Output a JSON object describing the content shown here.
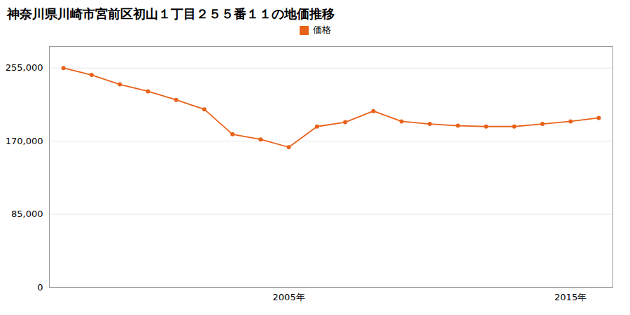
{
  "chart_data": {
    "type": "line",
    "title": "神奈川県川崎市宮前区初山１丁目２５５番１１の地価推移",
    "x": [
      1997,
      1998,
      1999,
      2000,
      2001,
      2002,
      2003,
      2004,
      2005,
      2006,
      2007,
      2008,
      2009,
      2010,
      2011,
      2012,
      2013,
      2014,
      2015,
      2016
    ],
    "series": [
      {
        "name": "価格",
        "color": "#e8621a",
        "marker": "circle",
        "values": [
          255000,
          247000,
          236000,
          228000,
          218000,
          207000,
          178000,
          172000,
          163000,
          187000,
          192000,
          205000,
          193000,
          190000,
          188000,
          187000,
          187000,
          190000,
          193000,
          197000
        ]
      }
    ],
    "xlim": [
      1996.5,
      2016.5
    ],
    "xticks": [
      {
        "value": 2005,
        "label": "2005年"
      },
      {
        "value": 2015,
        "label": "2015年"
      }
    ],
    "ylim": [
      0,
      280000
    ],
    "yticks": [
      0,
      {
        "value": 85000,
        "label": "85,000"
      },
      {
        "value": 170000,
        "label": "170,000"
      },
      {
        "value": 255000,
        "label": "255,000"
      }
    ],
    "grid": "y",
    "legend": "top"
  }
}
